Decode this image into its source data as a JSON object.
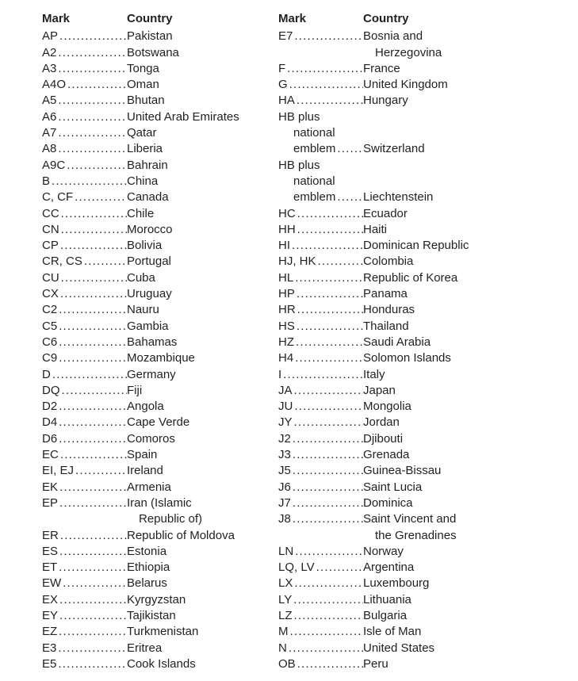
{
  "columns": [
    {
      "header": {
        "mark": "Mark",
        "country": "Country"
      },
      "entries": [
        {
          "mark": "AP",
          "country": "Pakistan"
        },
        {
          "mark": "A2",
          "country": "Botswana"
        },
        {
          "mark": "A3",
          "country": "Tonga"
        },
        {
          "mark": "A4O",
          "country": "Oman"
        },
        {
          "mark": "A5",
          "country": "Bhutan"
        },
        {
          "mark": "A6",
          "country": "United Arab Emirates"
        },
        {
          "mark": "A7",
          "country": "Qatar"
        },
        {
          "mark": "A8",
          "country": "Liberia"
        },
        {
          "mark": "A9C",
          "country": "Bahrain"
        },
        {
          "mark": "B",
          "country": "China"
        },
        {
          "mark": "C, CF",
          "country": "Canada"
        },
        {
          "mark": "CC",
          "country": "Chile"
        },
        {
          "mark": "CN",
          "country": "Morocco"
        },
        {
          "mark": "CP",
          "country": "Bolivia"
        },
        {
          "mark": "CR, CS",
          "country": "Portugal"
        },
        {
          "mark": "CU",
          "country": "Cuba"
        },
        {
          "mark": "CX",
          "country": "Uruguay"
        },
        {
          "mark": "C2",
          "country": "Nauru"
        },
        {
          "mark": "C5",
          "country": "Gambia"
        },
        {
          "mark": "C6",
          "country": "Bahamas"
        },
        {
          "mark": "C9",
          "country": "Mozambique"
        },
        {
          "mark": "D",
          "country": "Germany"
        },
        {
          "mark": "DQ",
          "country": "Fiji"
        },
        {
          "mark": "D2",
          "country": "Angola"
        },
        {
          "mark": "D4",
          "country": "Cape Verde"
        },
        {
          "mark": "D6",
          "country": "Comoros"
        },
        {
          "mark": "EC",
          "country": "Spain"
        },
        {
          "mark": "EI, EJ",
          "country": "Ireland"
        },
        {
          "mark": "EK",
          "country": "Armenia"
        },
        {
          "mark": "EP",
          "country": "Iran (Islamic",
          "cont": [
            "Republic of)"
          ]
        },
        {
          "mark": "ER",
          "country": "Republic of Moldova"
        },
        {
          "mark": "ES",
          "country": "Estonia"
        },
        {
          "mark": "ET",
          "country": "Ethiopia"
        },
        {
          "mark": "EW",
          "country": "Belarus"
        },
        {
          "mark": "EX",
          "country": "Kyrgyzstan"
        },
        {
          "mark": "EY",
          "country": "Tajikistan"
        },
        {
          "mark": "EZ",
          "country": "Turkmenistan"
        },
        {
          "mark": "E3",
          "country": "Eritrea"
        },
        {
          "mark": "E5",
          "country": "Cook Islands"
        }
      ]
    },
    {
      "header": {
        "mark": "Mark",
        "country": "Country"
      },
      "entries": [
        {
          "mark": "E7",
          "country": "Bosnia and",
          "cont": [
            "Herzegovina"
          ]
        },
        {
          "mark": "F",
          "country": "France"
        },
        {
          "mark": "G",
          "country": "United Kingdom"
        },
        {
          "mark": "HA",
          "country": "Hungary"
        },
        {
          "pre": [
            {
              "text": "HB plus",
              "indent": false
            },
            {
              "text": "national",
              "indent": true
            }
          ],
          "mark": "emblem",
          "mark_indent": true,
          "country": "Switzerland"
        },
        {
          "pre": [
            {
              "text": "HB plus",
              "indent": false
            },
            {
              "text": "national",
              "indent": true
            }
          ],
          "mark": "emblem",
          "mark_indent": true,
          "country": "Liechtenstein"
        },
        {
          "mark": "HC",
          "country": "Ecuador"
        },
        {
          "mark": "HH",
          "country": "Haiti"
        },
        {
          "mark": "HI",
          "country": "Dominican Republic"
        },
        {
          "mark": "HJ, HK",
          "country": "Colombia"
        },
        {
          "mark": "HL",
          "country": "Republic of Korea"
        },
        {
          "mark": "HP",
          "country": "Panama"
        },
        {
          "mark": "HR",
          "country": "Honduras"
        },
        {
          "mark": "HS",
          "country": "Thailand"
        },
        {
          "mark": "HZ",
          "country": "Saudi Arabia"
        },
        {
          "mark": "H4",
          "country": "Solomon Islands"
        },
        {
          "mark": "I",
          "country": "Italy"
        },
        {
          "mark": "JA",
          "country": "Japan"
        },
        {
          "mark": "JU",
          "country": "Mongolia"
        },
        {
          "mark": "JY",
          "country": "Jordan"
        },
        {
          "mark": "J2",
          "country": "Djibouti"
        },
        {
          "mark": "J3",
          "country": "Grenada"
        },
        {
          "mark": "J5",
          "country": "Guinea-Bissau"
        },
        {
          "mark": "J6",
          "country": "Saint Lucia"
        },
        {
          "mark": "J7",
          "country": "Dominica"
        },
        {
          "mark": "J8",
          "country": "Saint Vincent and",
          "cont": [
            "the Grenadines"
          ]
        },
        {
          "mark": "LN",
          "country": "Norway"
        },
        {
          "mark": "LQ, LV",
          "country": "Argentina"
        },
        {
          "mark": "LX",
          "country": "Luxembourg"
        },
        {
          "mark": "LY",
          "country": "Lithuania"
        },
        {
          "mark": "LZ",
          "country": "Bulgaria"
        },
        {
          "mark": "M",
          "country": "Isle of Man"
        },
        {
          "mark": "N",
          "country": "United States"
        },
        {
          "mark": "OB",
          "country": "Peru"
        }
      ]
    }
  ]
}
